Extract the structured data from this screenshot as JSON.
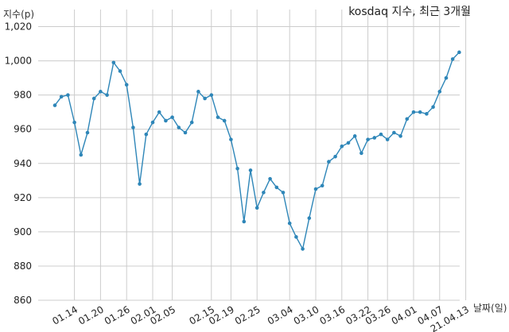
{
  "chart_data": {
    "type": "line",
    "title": "kosdaq 지수, 최근 3개월",
    "ylabel": "지수(p)",
    "xlabel": "날짜(일)",
    "ylim": [
      860,
      1030
    ],
    "yticks": [
      860,
      880,
      900,
      920,
      940,
      960,
      980,
      1000,
      1020
    ],
    "ytick_labels": [
      "860",
      "880",
      "900",
      "920",
      "940",
      "960",
      "980",
      "1,000",
      "1,020"
    ],
    "xtick_labels": [
      "01.14",
      "01.20",
      "01.26",
      "02.01",
      "02.05",
      "02.15",
      "02.19",
      "02.25",
      "03.04",
      "03.10",
      "03.16",
      "03.22",
      "03.26",
      "04.01",
      "04.07",
      "21.04.13"
    ],
    "xtick_index": [
      3,
      7,
      11,
      15,
      18,
      24,
      27,
      31,
      36,
      40,
      44,
      48,
      51,
      55,
      59,
      63
    ],
    "grid": true,
    "line_color": "#2e86b8",
    "series": [
      {
        "values": [
          974,
          979,
          980,
          964,
          945,
          958,
          978,
          982,
          980,
          999,
          994,
          986,
          961,
          928,
          957,
          964,
          970,
          965,
          967,
          961,
          958,
          964,
          982,
          978,
          980,
          967,
          965,
          954,
          937,
          906,
          936,
          914,
          923,
          931,
          926,
          923,
          905,
          897,
          890,
          908,
          925,
          927,
          941,
          944,
          950,
          952,
          956,
          946,
          954,
          955,
          957,
          954,
          958,
          956,
          966,
          970,
          970,
          969,
          973,
          982,
          990,
          1001,
          1005
        ]
      }
    ]
  }
}
